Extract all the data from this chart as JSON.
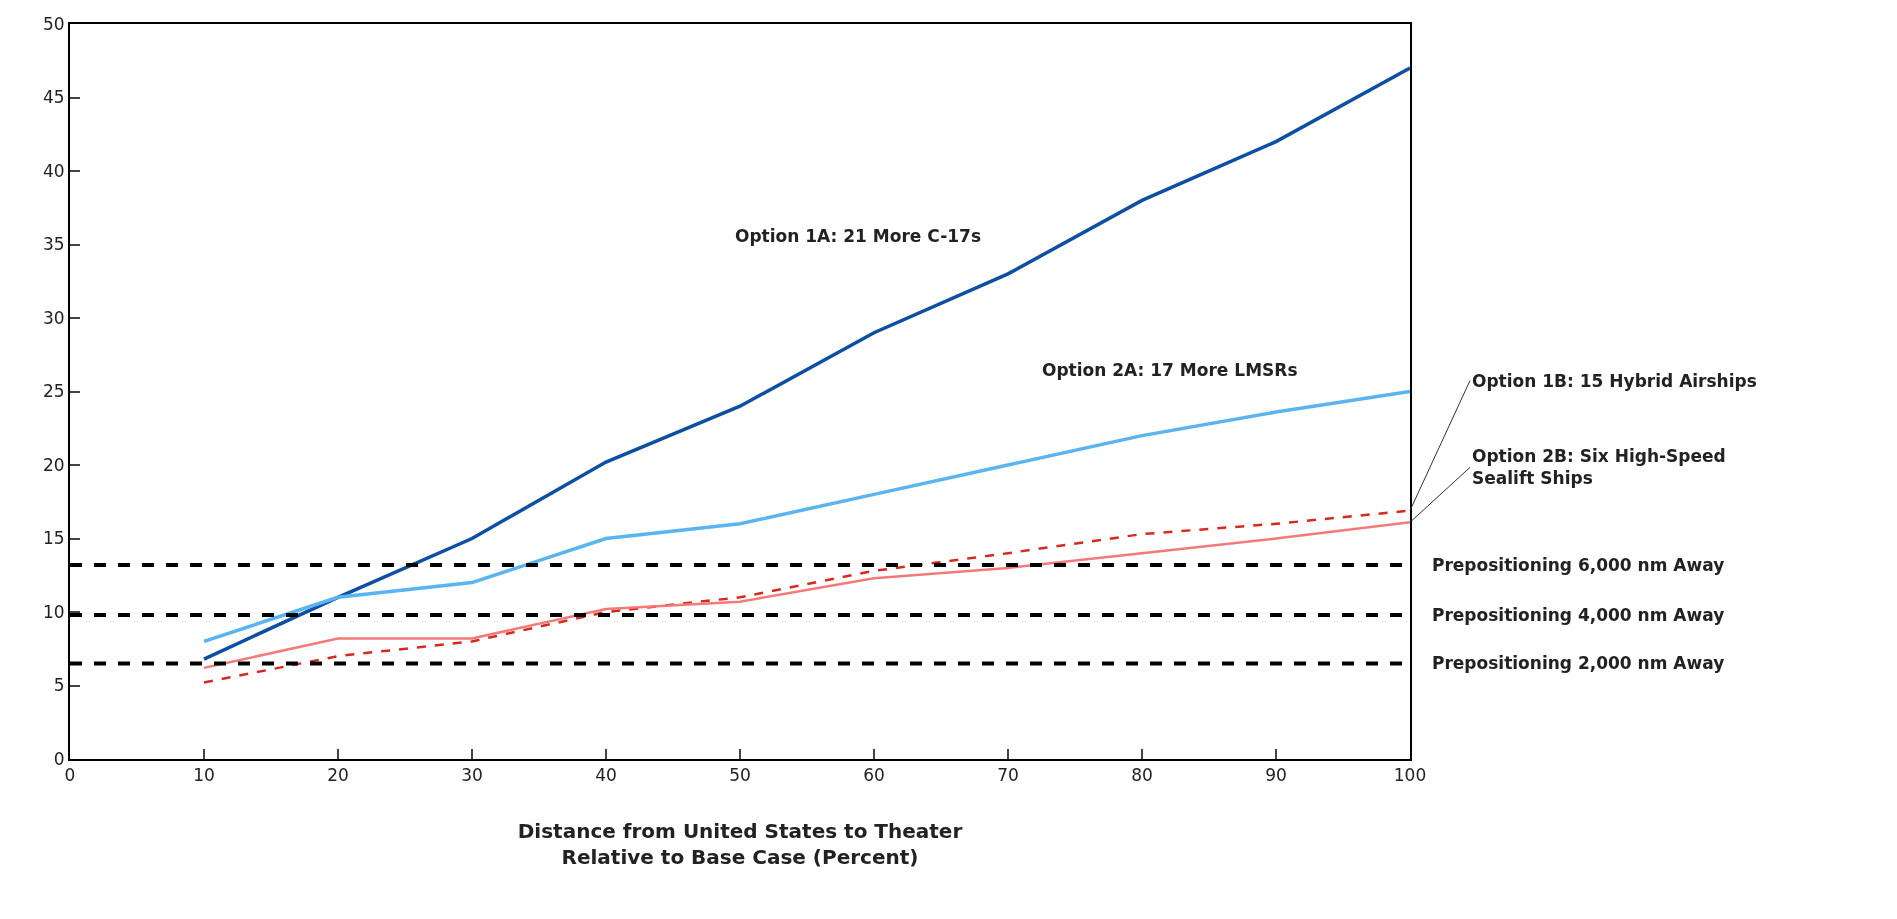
{
  "chart_data": {
    "type": "line",
    "xlabel": "Distance from United States to Theater\nRelative to Base Case (Percent)",
    "x": [
      10,
      20,
      30,
      40,
      50,
      60,
      70,
      80,
      90,
      100
    ],
    "xlim": [
      0,
      100
    ],
    "xticks": [
      0,
      10,
      20,
      30,
      40,
      50,
      60,
      70,
      80,
      90,
      100
    ],
    "ylim": [
      0,
      50
    ],
    "yticks": [
      0,
      5,
      10,
      15,
      20,
      25,
      30,
      35,
      40,
      45,
      50
    ],
    "legend": false,
    "marker": "none",
    "series": [
      {
        "name": "Option 1A: 21 More C-17s",
        "color": "#0d4fa3",
        "line_style": "solid",
        "values": [
          6.8,
          11,
          15,
          20.2,
          24,
          29,
          33,
          38,
          42,
          47
        ]
      },
      {
        "name": "Option 2A: 17 More LMSRs",
        "color": "#5ab4f0",
        "line_style": "solid",
        "values": [
          8,
          11,
          12,
          15,
          16,
          18,
          20,
          22,
          23.6,
          25
        ]
      },
      {
        "name": "Option 1B: 15 Hybrid Airships",
        "color": "#d62a1e",
        "line_style": "dashed",
        "values": [
          5.2,
          7,
          8,
          10,
          11,
          12.8,
          14,
          15.3,
          16,
          16.9
        ]
      },
      {
        "name": "Option 2B: Six High-Speed\nSealift Ships",
        "color": "#f47a7a",
        "line_style": "solid",
        "values": [
          6.2,
          8.2,
          8.2,
          10.2,
          10.7,
          12.3,
          13,
          14,
          15,
          16.1
        ]
      }
    ],
    "ref_lines": [
      {
        "axis": "y",
        "value": 13.2,
        "label": "Prepositioning 6,000 nm Away",
        "color": "#000000",
        "line_style": "dashed"
      },
      {
        "axis": "y",
        "value": 9.8,
        "label": "Prepositioning 4,000 nm Away",
        "color": "#000000",
        "line_style": "dashed"
      },
      {
        "axis": "y",
        "value": 6.5,
        "label": "Prepositioning 2,000 nm Away",
        "color": "#000000",
        "line_style": "dashed"
      }
    ]
  }
}
